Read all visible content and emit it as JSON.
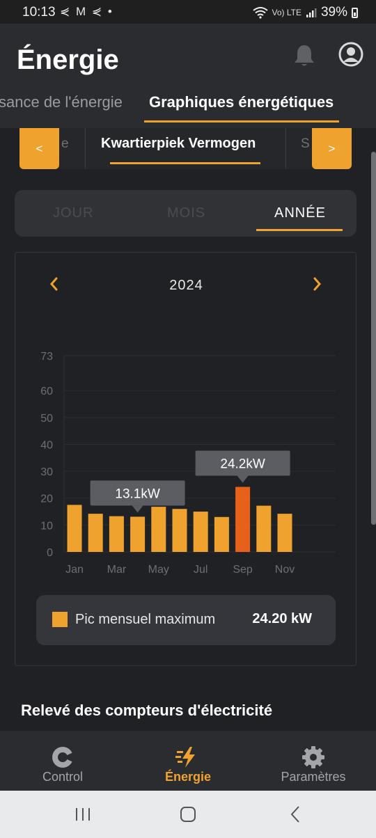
{
  "status_bar": {
    "time": "10:13",
    "notification_icons": "⋞ M ⋞ •",
    "signal_text": "Vo) LTE",
    "battery": "39%"
  },
  "header": {
    "title": "Énergie",
    "icons": [
      "bell-icon",
      "profile-icon"
    ]
  },
  "tabs": [
    {
      "label": "sance de l'énergie",
      "active": false
    },
    {
      "label": "Graphiques énergétiques",
      "active": true
    }
  ],
  "category_selector": {
    "prev_partial": "e",
    "current": "Kwartierpiek Vermogen",
    "next_partial": "S",
    "prev_button": "<",
    "next_button": ">"
  },
  "period_tabs": [
    {
      "label": "JOUR",
      "active": false
    },
    {
      "label": "MOIS",
      "active": false
    },
    {
      "label": "ANNÉE",
      "active": true
    }
  ],
  "year_nav": {
    "year": "2024"
  },
  "chart_data": {
    "type": "bar",
    "categories": [
      "Jan",
      "Feb",
      "Mar",
      "Apr",
      "May",
      "Jun",
      "Jul",
      "Aug",
      "Sep",
      "Oct",
      "Nov"
    ],
    "x_tick_labels": [
      "Jan",
      "",
      "Mar",
      "",
      "May",
      "",
      "Jul",
      "",
      "Sep",
      "",
      "Nov"
    ],
    "values": [
      17.5,
      14.2,
      13.3,
      13.1,
      16.8,
      16.0,
      15.0,
      13.0,
      24.2,
      17.2,
      14.2
    ],
    "y_ticks": [
      0,
      10,
      20,
      30,
      40,
      50,
      60,
      73
    ],
    "ylim": [
      0,
      73
    ],
    "bar_color": "#f0a22e",
    "highlight_color": "#e8611a",
    "highlight_index": 8,
    "callouts": [
      {
        "index": 3,
        "label": "13.1kW"
      },
      {
        "index": 8,
        "label": "24.2kW"
      }
    ],
    "grid": true,
    "legend": {
      "label": "Pic mensuel maximum",
      "value": "24.20 kW",
      "position": "bottom"
    }
  },
  "section": {
    "title": "Relevé des compteurs d'électricité"
  },
  "bottom_nav": [
    {
      "label": "Control",
      "icon": "control-icon",
      "active": false
    },
    {
      "label": "Énergie",
      "icon": "energy-bolt-icon",
      "active": true
    },
    {
      "label": "Paramètres",
      "icon": "gear-icon",
      "active": false
    }
  ],
  "colors": {
    "accent": "#f0a22e",
    "background": "#202124",
    "surface": "#2b2c2f"
  }
}
